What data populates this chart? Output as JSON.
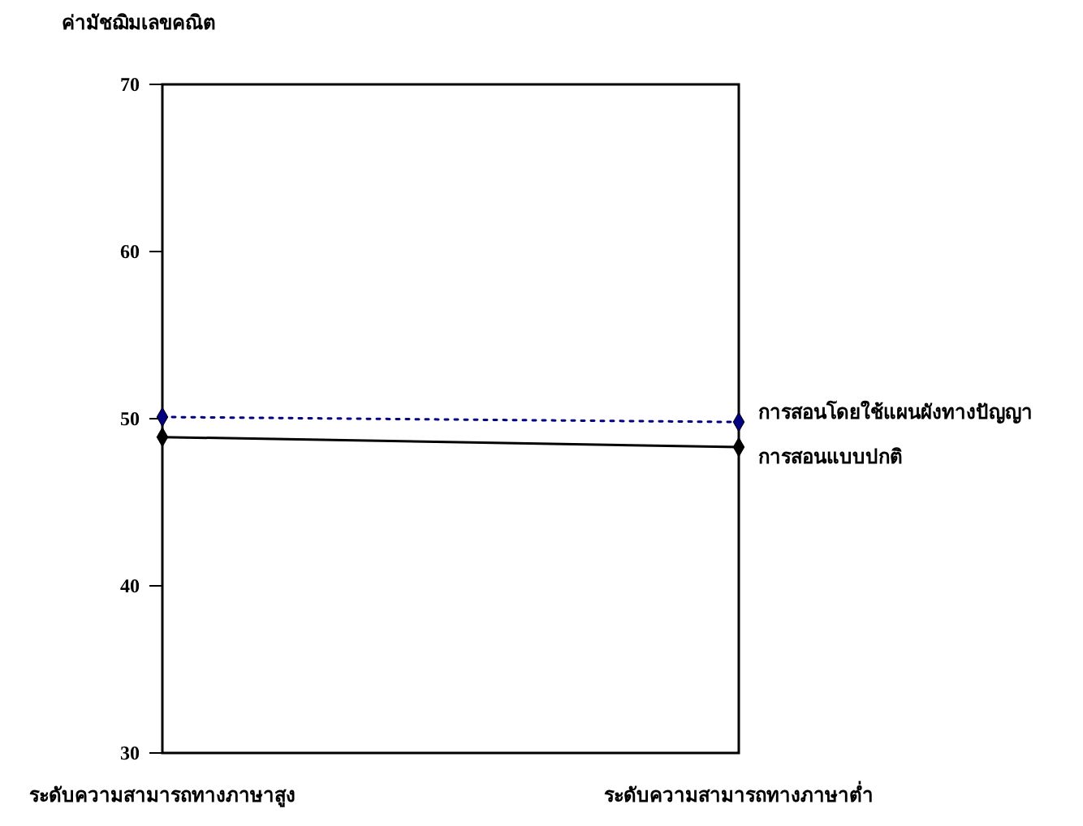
{
  "chart_data": {
    "type": "line",
    "ylabel": "ค่ามัชฌิมเลขคณิต",
    "categories": [
      "ระดับความสามารถทางภาษาสูง",
      "ระดับความสามารถทางภาษาต่ำ"
    ],
    "series": [
      {
        "name": "การสอนโดยใช้แผนผังทางปัญญา",
        "color": "#000080",
        "values": [
          50.1,
          49.8
        ],
        "line_style": "dotted"
      },
      {
        "name": "การสอนแบบปกติ",
        "color": "#000000",
        "values": [
          48.9,
          48.3
        ],
        "line_style": "solid"
      }
    ],
    "ylim": [
      30,
      70
    ],
    "yticks": [
      30,
      40,
      50,
      60,
      70
    ],
    "marker": "diamond",
    "grid": false,
    "legend": false
  }
}
